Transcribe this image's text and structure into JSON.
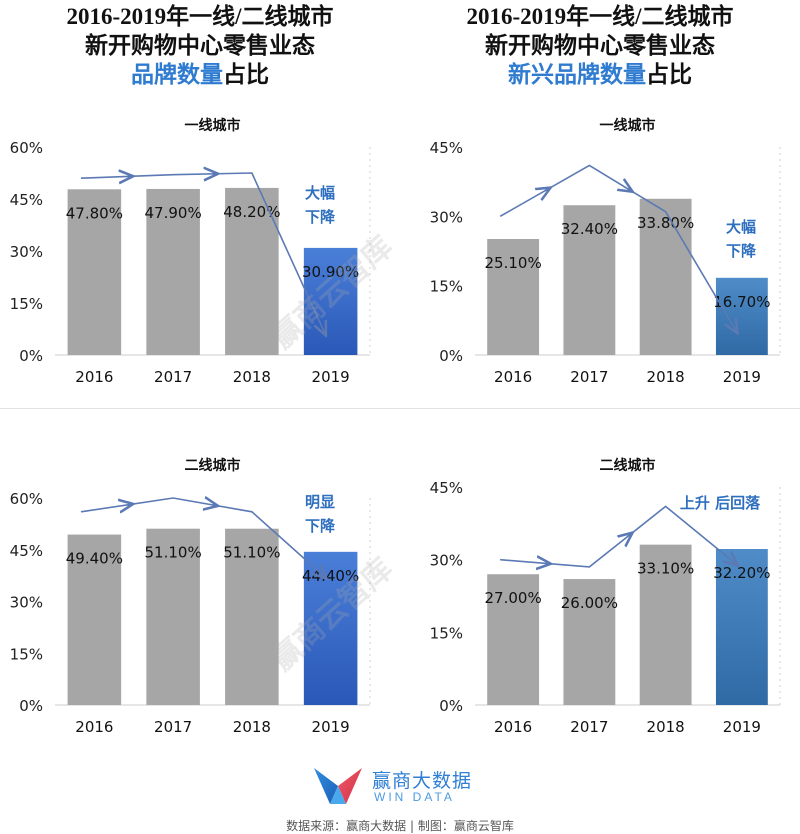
{
  "headings": {
    "left": {
      "line1": "2016-2019年一线/二线城市",
      "line2": "新开购物中心零售业态",
      "line3_highlight": "品牌数量",
      "line3_rest": "占比"
    },
    "right": {
      "line1": "2016-2019年一线/二线城市",
      "line2": "新开购物中心零售业态",
      "line3_highlight": "新兴品牌数量",
      "line3_rest": "占比"
    }
  },
  "colors": {
    "bar_gray": "#a6a6a6",
    "bar_blue_top": "#4a7fd8",
    "bar_blue_bottom": "#2a58b8",
    "bar_steel_top": "#4f8cc8",
    "bar_steel_bottom": "#2f6aa5",
    "arrow": "#5b79b4",
    "note_blue": "#2f6fbf",
    "highlight_blue": "#2e7bd0"
  },
  "chart_data": [
    {
      "type": "bar",
      "title": "一线城市",
      "categories": [
        "2016",
        "2017",
        "2018",
        "2019"
      ],
      "values": [
        47.8,
        47.9,
        48.2,
        30.9
      ],
      "value_labels": [
        "47.80%",
        "47.90%",
        "48.20%",
        "30.90%"
      ],
      "y_ticks": [
        "0%",
        "15%",
        "30%",
        "45%",
        "60%"
      ],
      "ylim": [
        0,
        60
      ],
      "highlight_index": 3,
      "highlight_style": "blue",
      "note": [
        "大幅",
        "下降"
      ],
      "trend_arrow": [
        51,
        52,
        52.5,
        6
      ]
    },
    {
      "type": "bar",
      "title": "一线城市",
      "categories": [
        "2016",
        "2017",
        "2018",
        "2019"
      ],
      "values": [
        25.1,
        32.4,
        33.8,
        16.7
      ],
      "value_labels": [
        "25.10%",
        "32.40%",
        "33.80%",
        "16.70%"
      ],
      "y_ticks": [
        "0%",
        "15%",
        "30%",
        "45%"
      ],
      "ylim": [
        0,
        45
      ],
      "highlight_index": 3,
      "highlight_style": "steel",
      "note": [
        "大幅",
        "下降"
      ],
      "trend_arrow": [
        30,
        41,
        31,
        5
      ]
    },
    {
      "type": "bar",
      "title": "二线城市",
      "categories": [
        "2016",
        "2017",
        "2018",
        "2019"
      ],
      "values": [
        49.4,
        51.1,
        51.1,
        44.4
      ],
      "value_labels": [
        "49.40%",
        "51.10%",
        "51.10%",
        "44.40%"
      ],
      "y_ticks": [
        "0%",
        "15%",
        "30%",
        "45%",
        "60%"
      ],
      "ylim": [
        0,
        60
      ],
      "highlight_index": 3,
      "highlight_style": "blue",
      "note": [
        "明显",
        "下降"
      ],
      "trend_arrow": [
        56,
        60,
        56,
        37
      ]
    },
    {
      "type": "bar",
      "title": "二线城市",
      "categories": [
        "2016",
        "2017",
        "2018",
        "2019"
      ],
      "values": [
        27.0,
        26.0,
        33.1,
        32.2
      ],
      "value_labels": [
        "27.00%",
        "26.00%",
        "33.10%",
        "32.20%"
      ],
      "y_ticks": [
        "0%",
        "15%",
        "30%",
        "45%"
      ],
      "ylim": [
        0,
        45
      ],
      "highlight_index": 3,
      "highlight_style": "steel",
      "note": [
        "上升 后回落"
      ],
      "trend_arrow": [
        30,
        28.5,
        41,
        29
      ]
    }
  ],
  "logo": {
    "name_cn": "赢商大数据",
    "name_en": "WIN DATA"
  },
  "source_text": "数据来源：赢商大数据 | 制图：赢商云智库",
  "watermark_text": "赢商云智库"
}
